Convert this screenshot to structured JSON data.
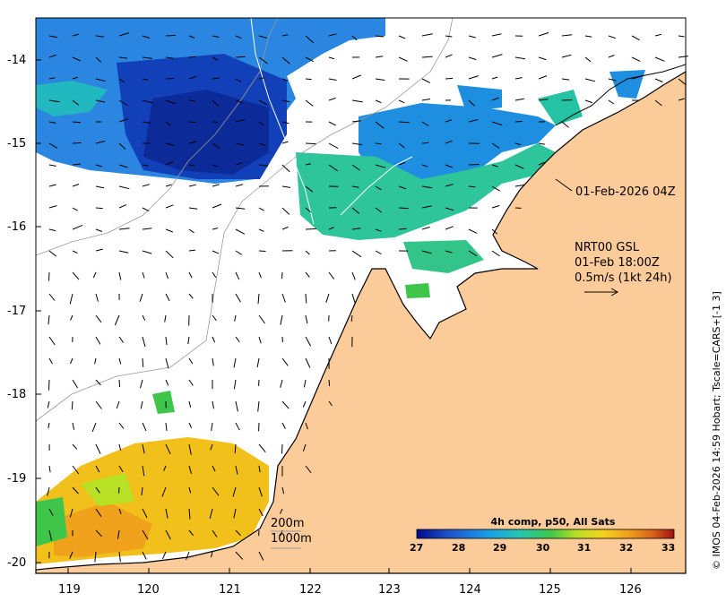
{
  "timestamp_label": "01-Feb-2026 04Z",
  "current_legend": {
    "line1": "NRT00 GSL",
    "line2": "01-Feb 18:00Z",
    "line3": "0.5m/s (1kt 24h)"
  },
  "isobath_legend": {
    "line1": "200m",
    "line2": "1000m"
  },
  "colorbar": {
    "title": "4h comp, p50, All Sats",
    "ticks": [
      "27",
      "28",
      "29",
      "30",
      "31",
      "32",
      "33"
    ],
    "colors": [
      "#000a8c",
      "#1f4fc8",
      "#1a9ee8",
      "#23c6b0",
      "#3fc64a",
      "#b8e025",
      "#f5d21e",
      "#f0a21c",
      "#d8601a",
      "#a01010"
    ]
  },
  "axes": {
    "lat_labels": [
      "-14",
      "-15",
      "-16",
      "-17",
      "-18",
      "-19",
      "-20"
    ],
    "lon_labels": [
      "119",
      "120",
      "121",
      "122",
      "123",
      "124",
      "125",
      "126"
    ]
  },
  "credit": "© IMOS 04-Feb-2026 14:59 Hobart; Tscale=CARS+[-1 3]",
  "colors": {
    "land": "#fccb9a",
    "sst_cool": "#1c5fd6",
    "sst_warm": "#f2c01a",
    "sst_mid": "#2ec490"
  }
}
